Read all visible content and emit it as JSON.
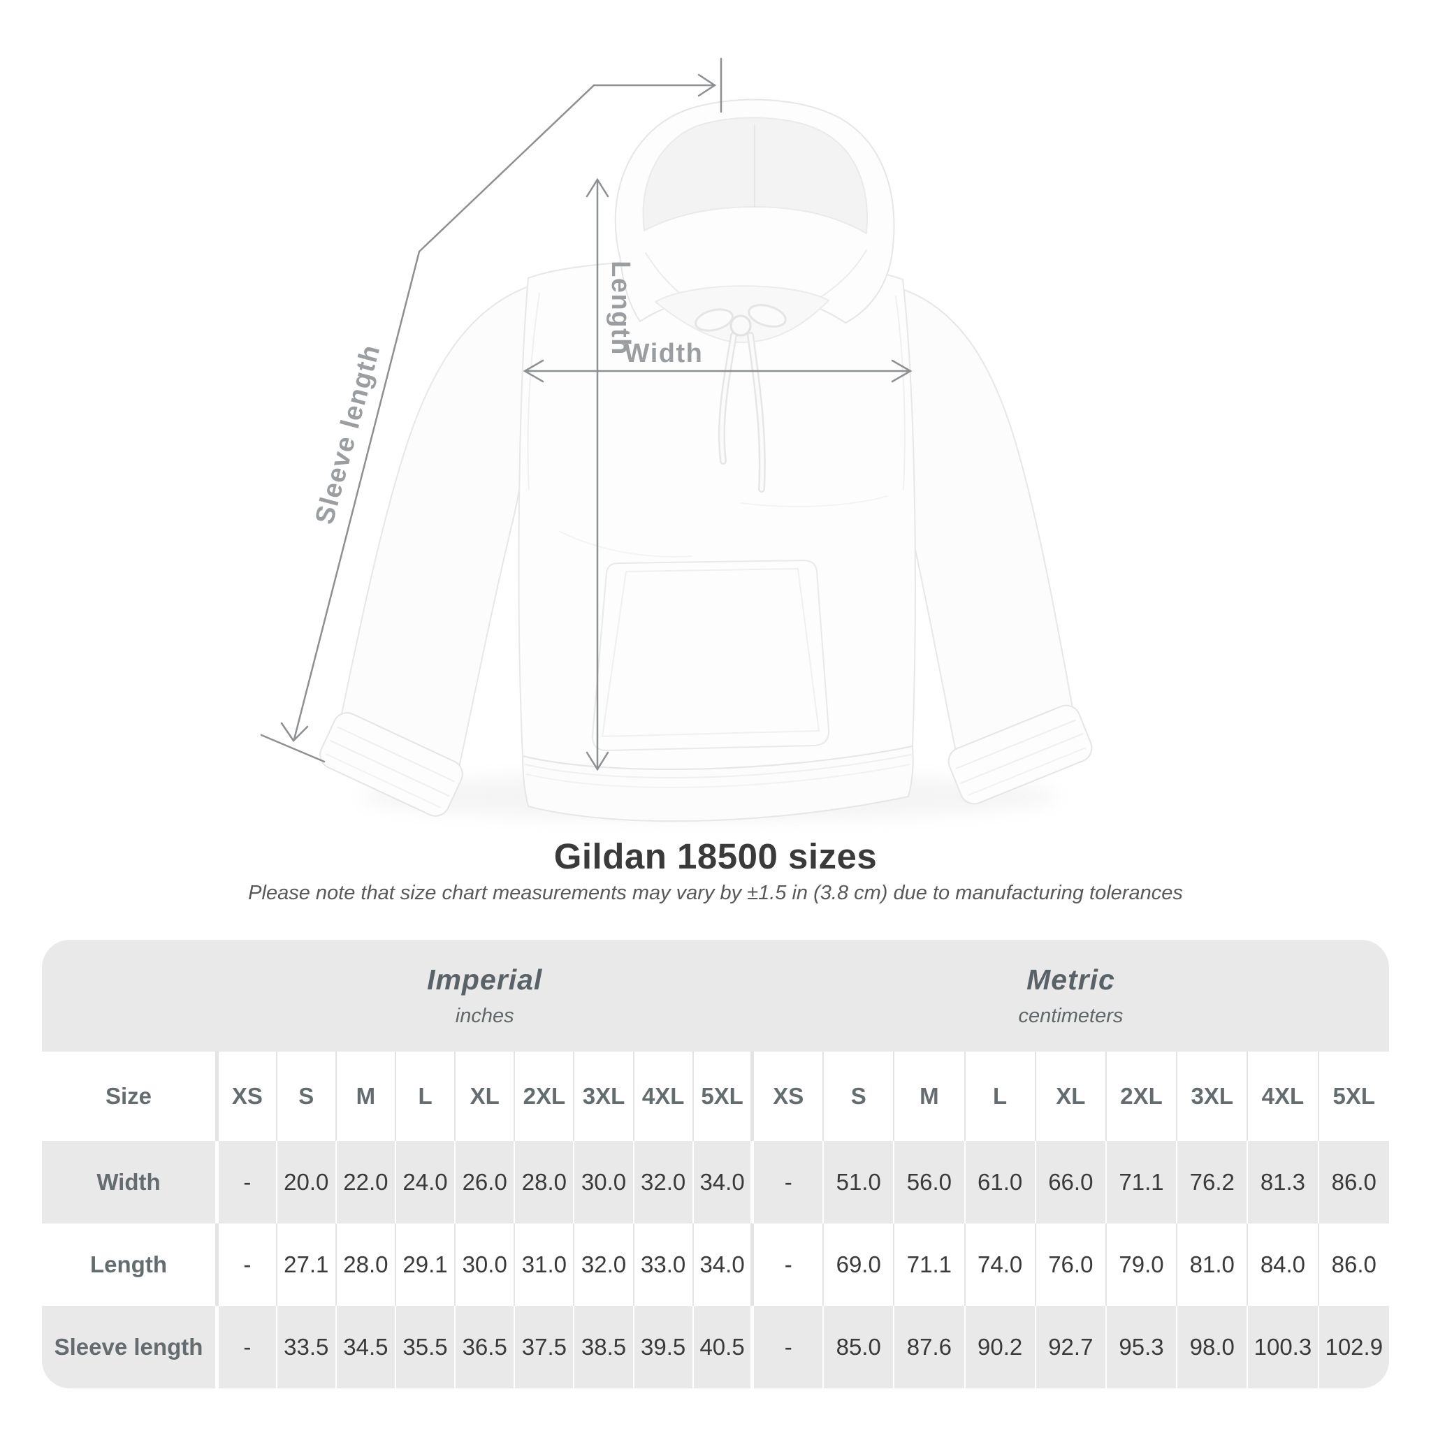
{
  "diagram": {
    "length_label": "Length",
    "width_label": "Width",
    "sleeve_label": "Sleeve length"
  },
  "title": "Gildan 18500 sizes",
  "subtitle": "Please note that size chart measurements may vary by ±1.5 in (3.8 cm) due to manufacturing tolerances",
  "table": {
    "size_header": "Size",
    "groups": [
      {
        "label": "Imperial",
        "sublabel": "inches"
      },
      {
        "label": "Metric",
        "sublabel": "centimeters"
      }
    ],
    "columns": [
      "XS",
      "S",
      "M",
      "L",
      "XL",
      "2XL",
      "3XL",
      "4XL",
      "5XL",
      "XS",
      "S",
      "M",
      "L",
      "XL",
      "2XL",
      "3XL",
      "4XL",
      "5XL"
    ],
    "rows": [
      {
        "label": "Width",
        "values": [
          "-",
          "20.0",
          "22.0",
          "24.0",
          "26.0",
          "28.0",
          "30.0",
          "32.0",
          "34.0",
          "-",
          "51.0",
          "56.0",
          "61.0",
          "66.0",
          "71.1",
          "76.2",
          "81.3",
          "86.0"
        ]
      },
      {
        "label": "Length",
        "values": [
          "-",
          "27.1",
          "28.0",
          "29.1",
          "30.0",
          "31.0",
          "32.0",
          "33.0",
          "34.0",
          "-",
          "69.0",
          "71.1",
          "74.0",
          "76.0",
          "79.0",
          "81.0",
          "84.0",
          "86.0"
        ]
      },
      {
        "label": "Sleeve length",
        "values": [
          "-",
          "33.5",
          "34.5",
          "35.5",
          "36.5",
          "37.5",
          "38.5",
          "39.5",
          "40.5",
          "-",
          "85.0",
          "87.6",
          "90.2",
          "92.7",
          "95.3",
          "98.0",
          "100.3",
          "102.9"
        ]
      }
    ]
  },
  "colors": {
    "band_gray": "#e9e9e9",
    "text_dark": "#3a3a3a",
    "text_gray_header": "#656c6f",
    "measure_line": "#8d9093",
    "measure_label": "#9b9ea0"
  }
}
